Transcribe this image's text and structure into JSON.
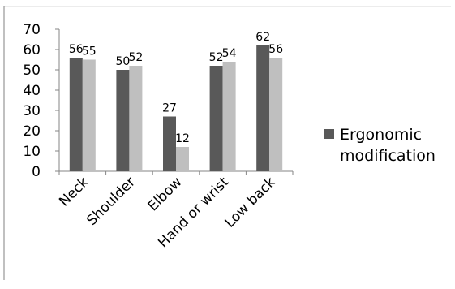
{
  "chart_data": {
    "type": "bar",
    "title": "",
    "xlabel": "",
    "ylabel": "",
    "categories": [
      "Neck",
      "Shoulder",
      "Elbow",
      "Hand or wrist",
      "Low back"
    ],
    "ylim": [
      0,
      70
    ],
    "yticks": [
      0,
      10,
      20,
      30,
      40,
      50,
      60,
      70
    ],
    "grid": false,
    "legend_position": "right",
    "legend_label": "Ergonomic modification",
    "series": [
      {
        "name": "Ergonomic modification",
        "values": [
          56,
          50,
          27,
          52,
          62
        ],
        "color": "#595959"
      },
      {
        "values": [
          55,
          52,
          12,
          54,
          56
        ],
        "color": "#bfbfbf"
      }
    ]
  }
}
